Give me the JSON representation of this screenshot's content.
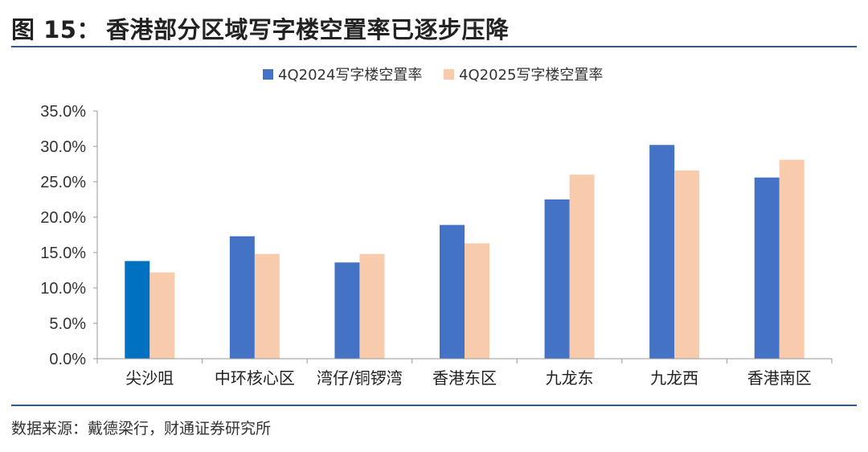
{
  "title": {
    "number": "图 15：",
    "text": "香港部分区域写字楼空置率已逐步压降"
  },
  "source": "数据来源：戴德梁行，财通证券研究所",
  "colors": {
    "series_2024": "#4472c4",
    "series_2024_highlight": "#0070c0",
    "series_2025": "#f8cbad",
    "axis": "#999999",
    "rule": "#2f5597"
  },
  "chart_data": {
    "type": "bar",
    "categories": [
      "尖沙咀",
      "中环核心区",
      "湾仔/铜锣湾",
      "香港东区",
      "九龙东",
      "九龙西",
      "香港南区"
    ],
    "series": [
      {
        "name": "4Q2024写字楼空置率",
        "values": [
          13.8,
          17.3,
          13.6,
          18.9,
          22.5,
          30.2,
          25.6
        ]
      },
      {
        "name": "4Q2025写字楼空置率",
        "values": [
          12.2,
          14.8,
          14.8,
          16.3,
          26.0,
          26.6,
          28.1
        ]
      }
    ],
    "ylim": [
      0,
      35
    ],
    "yticks": [
      "0.0%",
      "5.0%",
      "10.0%",
      "15.0%",
      "20.0%",
      "25.0%",
      "30.0%",
      "35.0%"
    ],
    "legend_position": "top-center",
    "grid": false
  }
}
